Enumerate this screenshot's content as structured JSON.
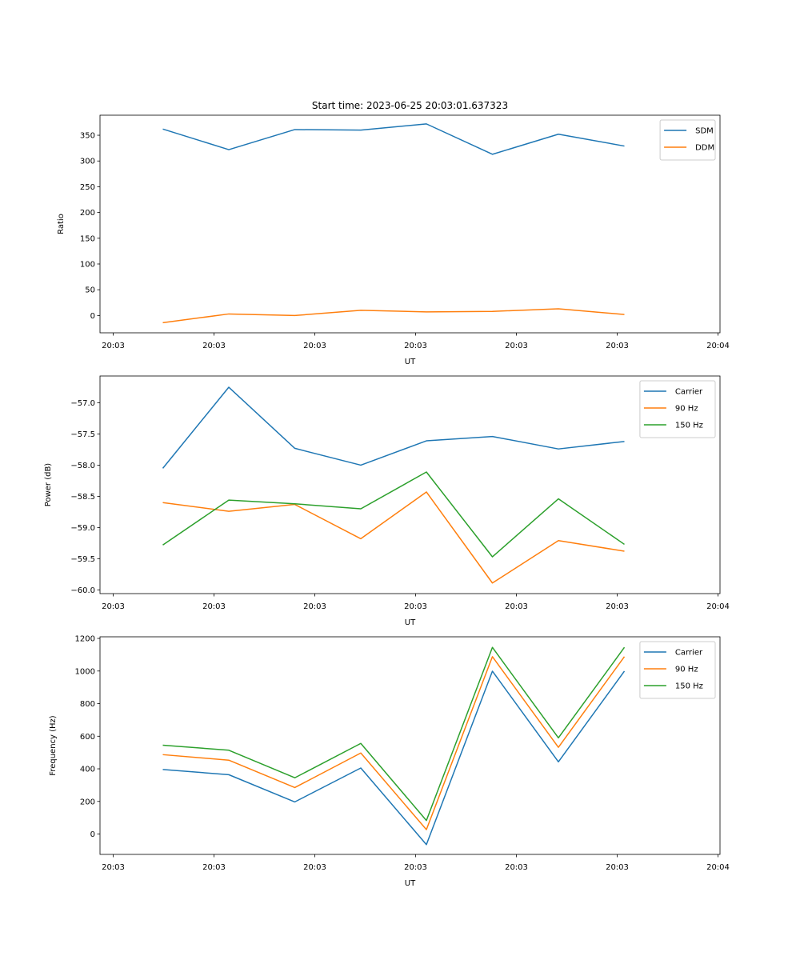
{
  "chart_data": [
    {
      "type": "line",
      "title": "Start time: 2023-06-25 20:03:01.637323",
      "xlabel": "UT",
      "ylabel": "Ratio",
      "x_tick_labels": [
        "20:03",
        "20:03",
        "20:03",
        "20:03",
        "20:03",
        "20:03",
        "20:03",
        "20:04"
      ],
      "y_ticks": [
        0,
        50,
        100,
        150,
        200,
        250,
        300,
        350
      ],
      "ylim": [
        -33.6,
        388.9
      ],
      "legend": "top-right",
      "grid": false,
      "series": [
        {
          "name": "SDM",
          "color": "#1f77b4",
          "values": [
            362,
            322,
            361,
            360,
            372,
            313,
            352,
            329
          ]
        },
        {
          "name": "DDM",
          "color": "#ff7f0e",
          "values": [
            -14,
            3,
            0,
            10,
            7,
            8,
            13,
            2
          ]
        }
      ]
    },
    {
      "type": "line",
      "title": "",
      "xlabel": "UT",
      "ylabel": "Power (dB)",
      "x_tick_labels": [
        "20:03",
        "20:03",
        "20:03",
        "20:03",
        "20:03",
        "20:03",
        "20:03",
        "20:04"
      ],
      "y_ticks": [
        -60.0,
        -59.5,
        -59.0,
        -58.5,
        -58.0,
        -57.5,
        -57.0
      ],
      "y_tick_labels": [
        "−60.0",
        "−59.5",
        "−59.0",
        "−58.5",
        "−58.0",
        "−57.5",
        "−57.0"
      ],
      "ylim": [
        -60.06,
        -56.57
      ],
      "legend": "top-right",
      "grid": false,
      "series": [
        {
          "name": "Carrier",
          "color": "#1f77b4",
          "values": [
            -58.05,
            -56.75,
            -57.73,
            -58.0,
            -57.61,
            -57.54,
            -57.74,
            -57.62
          ]
        },
        {
          "name": "90 Hz",
          "color": "#ff7f0e",
          "values": [
            -58.6,
            -58.74,
            -58.63,
            -59.18,
            -58.43,
            -59.89,
            -59.21,
            -59.38
          ]
        },
        {
          "name": "150 Hz",
          "color": "#2ca02c",
          "values": [
            -59.28,
            -58.56,
            -58.62,
            -58.7,
            -58.11,
            -59.47,
            -58.54,
            -59.27
          ]
        }
      ]
    },
    {
      "type": "line",
      "title": "",
      "xlabel": "UT",
      "ylabel": "Frequency (Hz)",
      "x_tick_labels": [
        "20:03",
        "20:03",
        "20:03",
        "20:03",
        "20:03",
        "20:03",
        "20:03",
        "20:04"
      ],
      "y_ticks": [
        0,
        200,
        400,
        600,
        800,
        1000,
        1200
      ],
      "ylim": [
        -125,
        1210
      ],
      "legend": "top-right",
      "grid": false,
      "series": [
        {
          "name": "Carrier",
          "color": "#1f77b4",
          "values": [
            396,
            364,
            197,
            405,
            -65,
            999,
            443,
            999
          ]
        },
        {
          "name": "90 Hz",
          "color": "#ff7f0e",
          "values": [
            487,
            453,
            285,
            497,
            27,
            1088,
            532,
            1088
          ]
        },
        {
          "name": "150 Hz",
          "color": "#2ca02c",
          "values": [
            545,
            514,
            345,
            556,
            83,
            1145,
            590,
            1145
          ]
        }
      ]
    }
  ]
}
